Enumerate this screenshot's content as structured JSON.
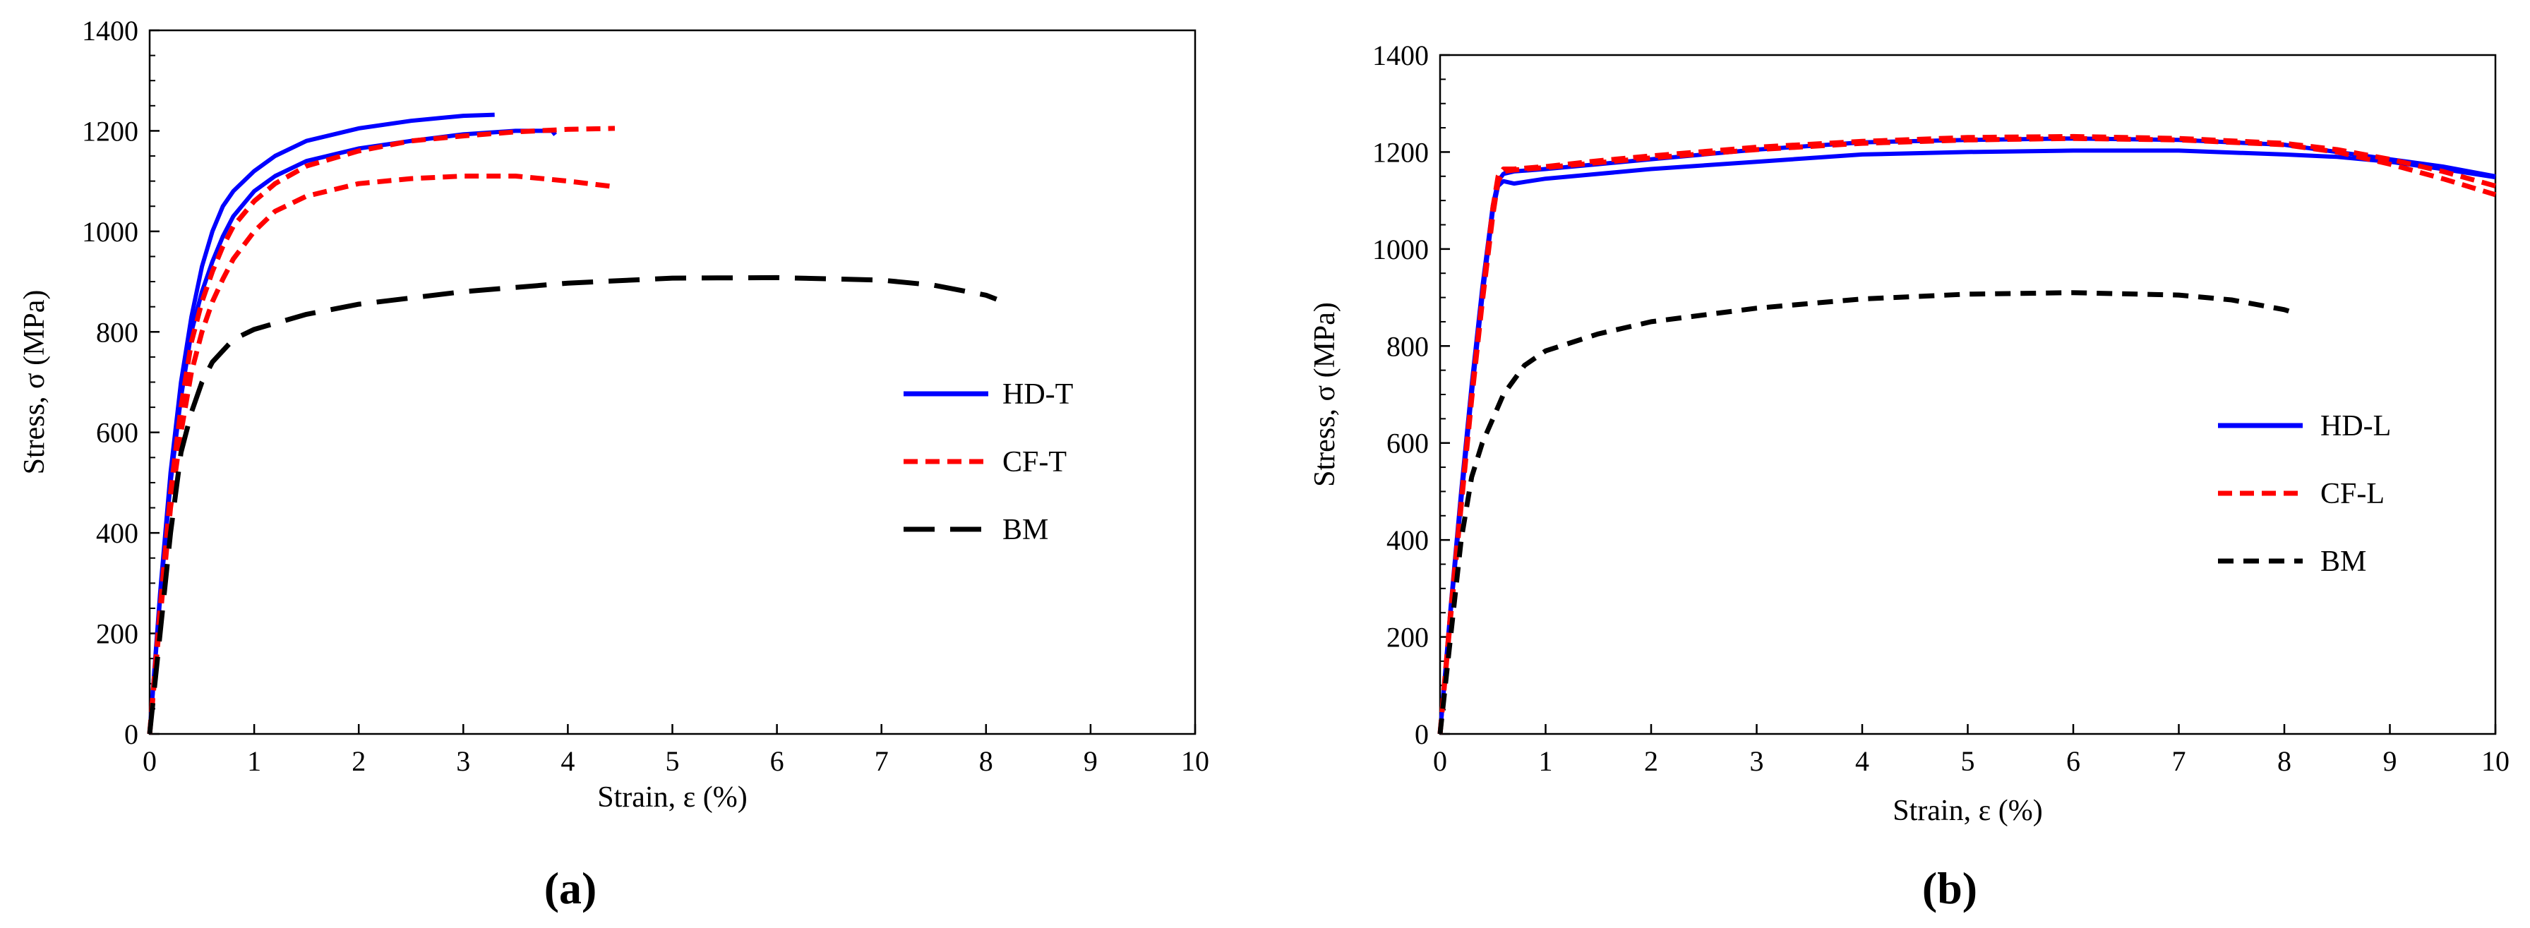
{
  "chart_data": [
    {
      "type": "line",
      "panel_label": "(a)",
      "title": "",
      "xlabel": "Strain, ε (%)",
      "ylabel": "Stress, σ (MPa)",
      "xlim": [
        0,
        10
      ],
      "ylim": [
        0,
        1400
      ],
      "xticks": [
        "0",
        "1",
        "2",
        "3",
        "4",
        "5",
        "6",
        "7",
        "8",
        "9",
        "10"
      ],
      "yticks": [
        "0",
        "200",
        "400",
        "600",
        "800",
        "1000",
        "1200",
        "1400"
      ],
      "grid": false,
      "legend_position": "center-right",
      "legend": [
        "HD-T",
        "CF-T",
        "BM"
      ],
      "series": [
        {
          "name": "HD-T",
          "legend": true,
          "color": "#0000ff",
          "dash": "solid",
          "x": [
            0,
            0.1,
            0.2,
            0.3,
            0.4,
            0.5,
            0.6,
            0.7,
            0.8,
            1.0,
            1.2,
            1.5,
            2.0,
            2.5,
            3.0,
            3.3
          ],
          "y": [
            0,
            280,
            520,
            700,
            830,
            930,
            1000,
            1050,
            1080,
            1120,
            1150,
            1180,
            1205,
            1220,
            1230,
            1232
          ]
        },
        {
          "name": "HD-T",
          "legend": false,
          "color": "#0000ff",
          "dash": "solid",
          "x": [
            0,
            0.1,
            0.2,
            0.3,
            0.4,
            0.5,
            0.6,
            0.7,
            0.8,
            1.0,
            1.2,
            1.5,
            2.0,
            2.5,
            3.0,
            3.5,
            3.85,
            3.88
          ],
          "y": [
            0,
            270,
            500,
            670,
            800,
            880,
            940,
            990,
            1030,
            1080,
            1110,
            1140,
            1165,
            1180,
            1193,
            1200,
            1200,
            1192
          ]
        },
        {
          "name": "CF-T",
          "legend": true,
          "color": "#ff0000",
          "dash": "short",
          "x": [
            0,
            0.1,
            0.2,
            0.3,
            0.4,
            0.5,
            0.6,
            0.7,
            0.8,
            1.0,
            1.2,
            1.5,
            2.0,
            2.5,
            3.0,
            3.5,
            4.0,
            4.45
          ],
          "y": [
            0,
            250,
            480,
            650,
            780,
            860,
            920,
            970,
            1010,
            1060,
            1095,
            1130,
            1160,
            1180,
            1190,
            1198,
            1203,
            1205
          ]
        },
        {
          "name": "CF-T",
          "legend": false,
          "color": "#ff0000",
          "dash": "short",
          "x": [
            0,
            0.1,
            0.2,
            0.3,
            0.4,
            0.5,
            0.6,
            0.7,
            0.8,
            1.0,
            1.2,
            1.5,
            2.0,
            2.5,
            3.0,
            3.5,
            4.0,
            4.4
          ],
          "y": [
            0,
            230,
            450,
            600,
            720,
            800,
            860,
            905,
            945,
            1000,
            1040,
            1070,
            1095,
            1105,
            1110,
            1110,
            1100,
            1090
          ]
        },
        {
          "name": "BM",
          "legend": true,
          "color": "#000000",
          "dash": "long",
          "x": [
            0,
            0.1,
            0.2,
            0.3,
            0.4,
            0.5,
            0.6,
            0.8,
            1.0,
            1.5,
            2.0,
            3.0,
            4.0,
            5.0,
            6.0,
            7.0,
            7.5,
            8.0,
            8.1
          ],
          "y": [
            0,
            200,
            400,
            560,
            640,
            700,
            740,
            785,
            805,
            835,
            855,
            880,
            897,
            907,
            908,
            903,
            893,
            873,
            865
          ]
        }
      ]
    },
    {
      "type": "line",
      "panel_label": "(b)",
      "title": "",
      "xlabel": "Strain, ε (%)",
      "ylabel": "Stress, σ (MPa)",
      "xlim": [
        0,
        10
      ],
      "ylim": [
        0,
        1400
      ],
      "xticks": [
        "0",
        "1",
        "2",
        "3",
        "4",
        "5",
        "6",
        "7",
        "8",
        "9",
        "10"
      ],
      "yticks": [
        "0",
        "200",
        "400",
        "600",
        "800",
        "1000",
        "1200",
        "1400"
      ],
      "grid": false,
      "legend_position": "center-right",
      "legend": [
        "HD-L",
        "CF-L",
        "BM"
      ],
      "series": [
        {
          "name": "HD-L",
          "legend": true,
          "color": "#0000ff",
          "dash": "solid",
          "x": [
            0,
            0.1,
            0.2,
            0.3,
            0.4,
            0.5,
            0.55,
            0.6,
            0.7,
            1.0,
            1.5,
            2.0,
            3.0,
            4.0,
            5.0,
            6.0,
            7.0,
            8.0,
            8.5,
            9.0,
            9.5,
            10.0
          ],
          "y": [
            0,
            250,
            480,
            700,
            900,
            1080,
            1130,
            1140,
            1135,
            1145,
            1155,
            1165,
            1180,
            1195,
            1200,
            1203,
            1203,
            1195,
            1190,
            1180,
            1165,
            1148
          ]
        },
        {
          "name": "HD-L",
          "legend": false,
          "color": "#0000ff",
          "dash": "solid",
          "x": [
            0,
            0.1,
            0.2,
            0.3,
            0.4,
            0.5,
            0.55,
            0.6,
            0.7,
            1.0,
            1.5,
            2.0,
            3.0,
            4.0,
            5.0,
            6.0,
            7.0,
            8.0,
            8.5,
            9.0,
            9.5,
            10.0
          ],
          "y": [
            0,
            260,
            500,
            720,
            920,
            1090,
            1140,
            1155,
            1160,
            1165,
            1175,
            1185,
            1205,
            1220,
            1225,
            1228,
            1225,
            1215,
            1200,
            1185,
            1170,
            1150
          ]
        },
        {
          "name": "CF-L",
          "legend": true,
          "color": "#ff0000",
          "dash": "short",
          "x": [
            0,
            0.1,
            0.2,
            0.3,
            0.4,
            0.5,
            0.55,
            0.6,
            0.7,
            1.0,
            1.5,
            2.0,
            3.0,
            4.0,
            5.0,
            6.0,
            7.0,
            8.0,
            8.5,
            9.0,
            9.5,
            10.0
          ],
          "y": [
            0,
            240,
            470,
            690,
            890,
            1070,
            1140,
            1160,
            1163,
            1168,
            1178,
            1188,
            1205,
            1218,
            1225,
            1228,
            1225,
            1215,
            1200,
            1175,
            1145,
            1112
          ]
        },
        {
          "name": "CF-L",
          "legend": false,
          "color": "#ff0000",
          "dash": "short",
          "x": [
            0,
            0.1,
            0.2,
            0.3,
            0.4,
            0.5,
            0.55,
            0.6,
            0.7,
            1.0,
            1.5,
            2.0,
            3.0,
            4.0,
            5.0,
            6.0,
            7.0,
            8.0,
            8.5,
            9.0,
            9.5,
            10.0
          ],
          "y": [
            0,
            250,
            480,
            700,
            900,
            1085,
            1150,
            1165,
            1165,
            1170,
            1182,
            1192,
            1210,
            1222,
            1230,
            1232,
            1228,
            1218,
            1205,
            1185,
            1160,
            1130
          ]
        },
        {
          "name": "BM",
          "legend": true,
          "color": "#000000",
          "dash": "medium",
          "x": [
            0,
            0.1,
            0.2,
            0.3,
            0.4,
            0.5,
            0.6,
            0.8,
            1.0,
            1.5,
            2.0,
            3.0,
            4.0,
            5.0,
            6.0,
            7.0,
            7.5,
            8.0,
            8.1
          ],
          "y": [
            0,
            200,
            400,
            530,
            600,
            650,
            700,
            760,
            790,
            825,
            850,
            878,
            897,
            907,
            910,
            905,
            895,
            875,
            868
          ]
        }
      ]
    }
  ]
}
